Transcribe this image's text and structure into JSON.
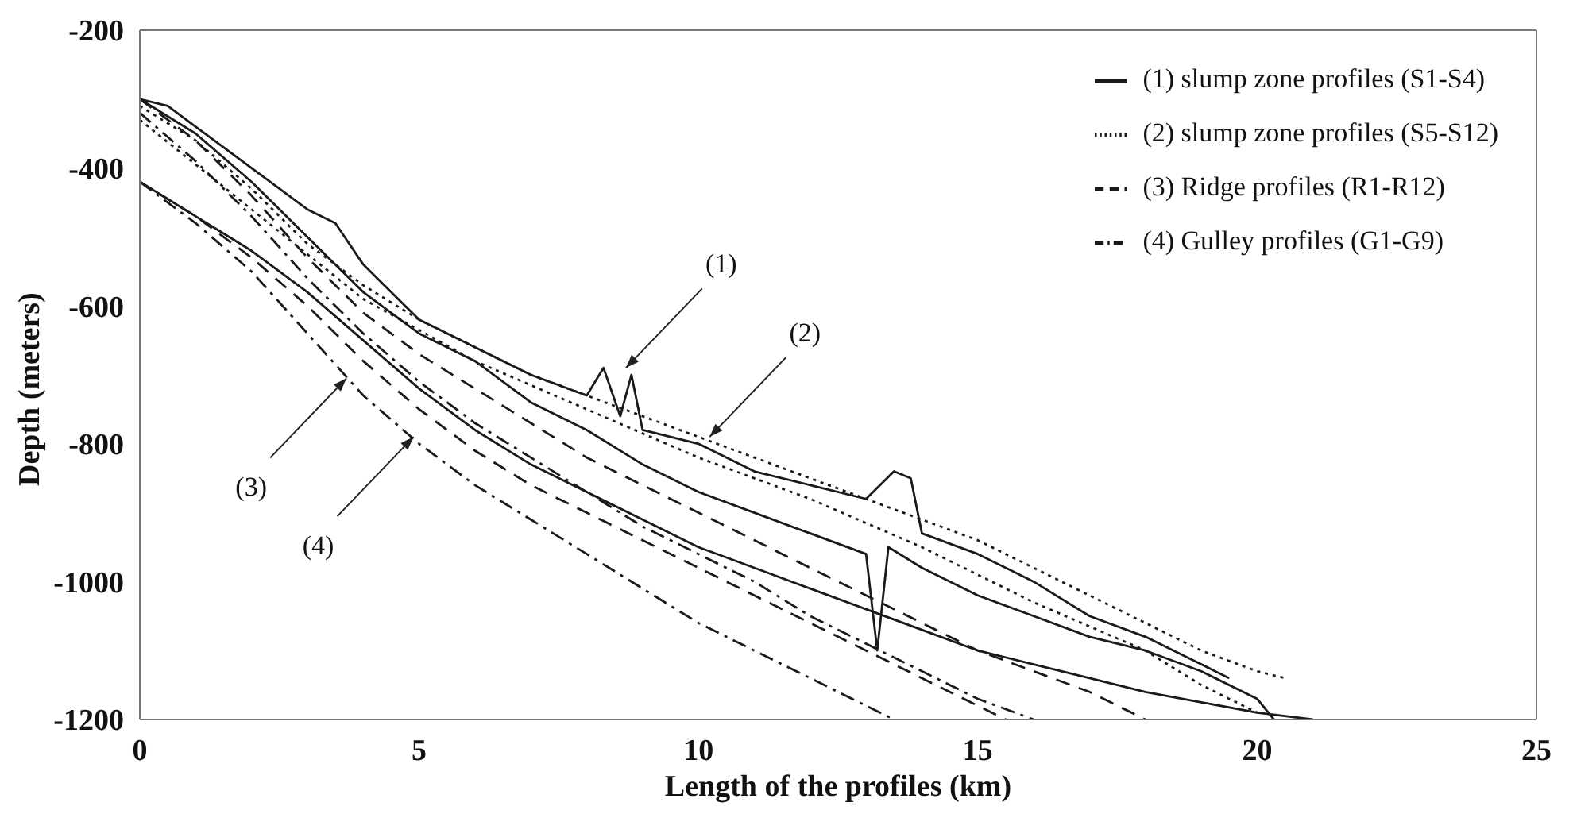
{
  "chart_data": {
    "type": "line",
    "xlabel": "Length of the profiles (km)",
    "ylabel": "Depth (meters)",
    "xlim": [
      0,
      25
    ],
    "xticks": [
      0,
      5,
      10,
      15,
      20,
      25
    ],
    "ylim": [
      -1200,
      -200
    ],
    "yticks": [
      -1200,
      -1000,
      -800,
      -600,
      -400,
      -200
    ],
    "grid": false,
    "legend": "top right",
    "marker": "none",
    "series": [
      {
        "name": "(1) slump zone profiles (S1-S4)",
        "color": "#1a1a1a",
        "line_style": "solid",
        "x": [
          0,
          0.5,
          1,
          2,
          3,
          3.5,
          4,
          5,
          6,
          7,
          8,
          8.3,
          8.6,
          8.8,
          9,
          10,
          11,
          12,
          13,
          13.5,
          13.8,
          14,
          15,
          16,
          17,
          18,
          19,
          19.5
        ],
        "values": [
          -300,
          -310,
          -340,
          -400,
          -460,
          -480,
          -540,
          -620,
          -660,
          -700,
          -730,
          -690,
          -760,
          -700,
          -780,
          -800,
          -840,
          -860,
          -880,
          -840,
          -850,
          -930,
          -960,
          -1000,
          -1050,
          -1080,
          -1120,
          -1140
        ]
      },
      {
        "color": "#1a1a1a",
        "line_style": "solid",
        "x": [
          0,
          1,
          2,
          3,
          4,
          5,
          6,
          7,
          8,
          9,
          10,
          11,
          12,
          13,
          13.2,
          13.4,
          14,
          15,
          16,
          17,
          18,
          19,
          20,
          20.3
        ],
        "values": [
          -300,
          -350,
          -420,
          -500,
          -580,
          -640,
          -680,
          -740,
          -780,
          -830,
          -870,
          -900,
          -930,
          -960,
          -1100,
          -950,
          -980,
          -1020,
          -1050,
          -1080,
          -1100,
          -1130,
          -1170,
          -1200
        ]
      },
      {
        "color": "#1a1a1a",
        "line_style": "solid",
        "x": [
          0,
          1,
          2,
          3,
          4,
          5,
          6,
          7,
          8,
          9,
          10,
          11,
          12,
          13,
          14,
          15,
          16,
          17,
          18,
          19,
          20,
          21
        ],
        "values": [
          -420,
          -470,
          -520,
          -580,
          -650,
          -720,
          -780,
          -830,
          -870,
          -910,
          -950,
          -980,
          -1010,
          -1040,
          -1070,
          -1100,
          -1120,
          -1140,
          -1160,
          -1175,
          -1190,
          -1200
        ]
      },
      {
        "name": "(2) slump zone profiles (S5-S12)",
        "color": "#1a1a1a",
        "line_style": "dotted",
        "x": [
          0,
          1,
          2,
          3,
          4,
          5,
          6,
          7,
          8,
          9,
          10,
          11,
          12,
          13,
          14,
          15,
          16,
          17,
          18,
          19,
          20,
          20.5
        ],
        "values": [
          -310,
          -360,
          -430,
          -510,
          -570,
          -620,
          -660,
          -700,
          -730,
          -760,
          -790,
          -820,
          -850,
          -880,
          -910,
          -940,
          -980,
          -1020,
          -1060,
          -1100,
          -1130,
          -1140
        ]
      },
      {
        "color": "#1a1a1a",
        "line_style": "dotted",
        "x": [
          0,
          2,
          4,
          6,
          8,
          10,
          12,
          14,
          16,
          18,
          19,
          20
        ],
        "values": [
          -330,
          -460,
          -590,
          -680,
          -750,
          -820,
          -880,
          -950,
          -1030,
          -1100,
          -1150,
          -1190
        ]
      },
      {
        "name": "(3) Ridge profiles (R1-R12)",
        "color": "#1a1a1a",
        "line_style": "dashed",
        "x": [
          0,
          1,
          2,
          3,
          4,
          5,
          6,
          7,
          8,
          9,
          10,
          11,
          12,
          13,
          14,
          15,
          15.5
        ],
        "values": [
          -420,
          -470,
          -530,
          -600,
          -680,
          -750,
          -810,
          -860,
          -900,
          -940,
          -980,
          -1020,
          -1060,
          -1100,
          -1140,
          -1180,
          -1200
        ]
      },
      {
        "color": "#1a1a1a",
        "line_style": "dashed",
        "x": [
          0,
          1,
          2,
          3,
          4,
          5,
          6,
          7,
          8,
          9,
          10,
          11,
          12,
          13,
          14,
          15,
          16,
          17,
          18
        ],
        "values": [
          -300,
          -360,
          -440,
          -530,
          -610,
          -670,
          -720,
          -770,
          -820,
          -860,
          -900,
          -940,
          -980,
          -1020,
          -1060,
          -1100,
          -1130,
          -1160,
          -1200
        ]
      },
      {
        "name": "(4) Gulley profiles (G1-G9)",
        "color": "#1a1a1a",
        "line_style": "dashdot",
        "x": [
          0,
          1,
          2,
          3,
          4,
          5,
          6,
          7,
          8,
          9,
          10,
          11,
          12,
          13,
          13.5
        ],
        "values": [
          -420,
          -480,
          -550,
          -640,
          -730,
          -800,
          -860,
          -910,
          -960,
          -1010,
          -1060,
          -1100,
          -1140,
          -1180,
          -1200
        ]
      },
      {
        "color": "#1a1a1a",
        "line_style": "dashdot",
        "x": [
          0,
          1,
          2,
          3,
          4,
          5,
          6,
          7,
          8,
          9,
          10,
          11,
          12,
          13,
          14,
          15,
          16
        ],
        "values": [
          -320,
          -390,
          -470,
          -560,
          -640,
          -710,
          -770,
          -820,
          -870,
          -920,
          -960,
          -1000,
          -1050,
          -1090,
          -1130,
          -1170,
          -1200
        ]
      }
    ],
    "annotations": [
      {
        "text": "(1)",
        "x": 8.7,
        "y": -690
      },
      {
        "text": "(2)",
        "x": 10.2,
        "y": -790
      },
      {
        "text": "(3)",
        "x": 3.7,
        "y": -705
      },
      {
        "text": "(4)",
        "x": 4.9,
        "y": -790
      }
    ]
  }
}
